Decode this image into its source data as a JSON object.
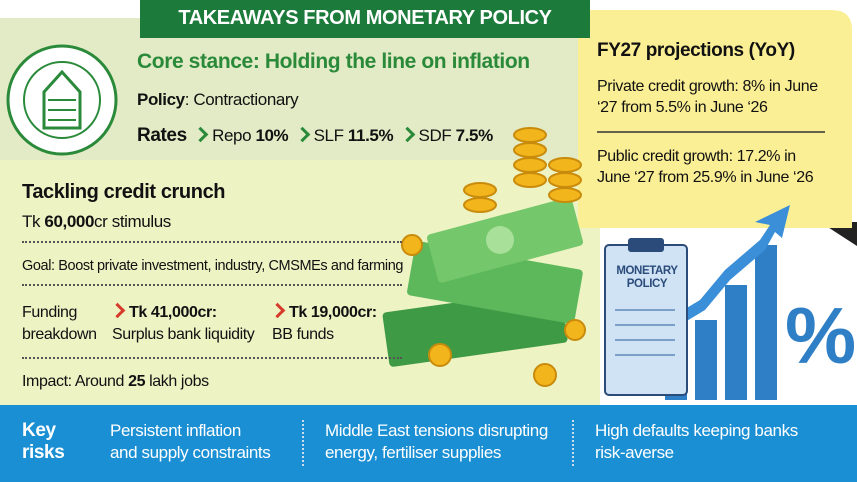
{
  "header": {
    "title": "TAKEAWAYS FROM MONETARY POLICY"
  },
  "stance": {
    "heading": "Core stance: Holding the line on inflation",
    "policy_label": "Policy",
    "policy_value": ": Contractionary",
    "rates_label": "Rates",
    "rates": [
      {
        "name": "Repo ",
        "value": "10%"
      },
      {
        "name": "SLF ",
        "value": "11.5%"
      },
      {
        "name": "SDF ",
        "value": "7.5%"
      }
    ]
  },
  "credit": {
    "heading": "Tackling credit crunch",
    "stimulus": [
      "Tk ",
      "60,000",
      "cr stimulus"
    ],
    "goal": "Goal: Boost private investment, industry, CMSMEs and farming",
    "funding_label": [
      "Funding",
      "breakdown"
    ],
    "funding": [
      {
        "amount": "Tk 41,000cr:",
        "source": "Surplus bank liquidity"
      },
      {
        "amount": "Tk 19,000cr:",
        "source": "BB funds"
      }
    ],
    "impact": [
      "Impact: Around ",
      "25",
      " lakh jobs"
    ]
  },
  "projections": {
    "heading": "FY27 projections (YoY)",
    "items": [
      "Private credit growth: 8% in June ‘27 from 5.5% in June ‘26",
      "Public credit growth: 17.2% in June ‘27 from 25.9% in June ‘26"
    ]
  },
  "illustration": {
    "clipboard": [
      "MONETARY",
      "POLICY"
    ],
    "symbol": "%"
  },
  "risks": {
    "label": [
      "Key",
      "risks"
    ],
    "items": [
      [
        "Persistent inflation",
        "and supply constraints"
      ],
      [
        "Middle East tensions disrupting",
        "energy, fertiliser supplies"
      ],
      [
        "High defaults keeping banks",
        "risk-averse"
      ]
    ]
  }
}
